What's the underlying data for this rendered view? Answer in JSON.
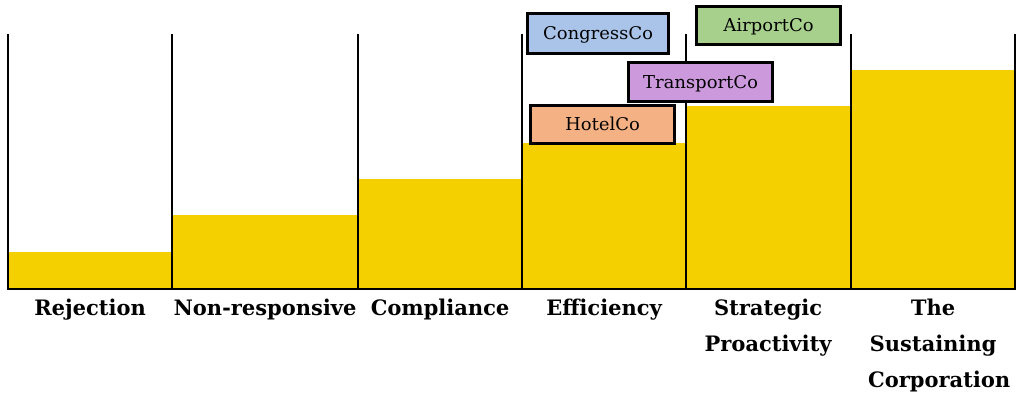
{
  "stages": [
    {
      "label": "Rejection",
      "level": 1
    },
    {
      "label": "Non-responsive",
      "level": 2
    },
    {
      "label": "Compliance",
      "level": 3
    },
    {
      "label": "Efficiency",
      "level": 4
    },
    {
      "label": "Strategic Proactivity",
      "level": 5
    },
    {
      "label": "The Sustaining Corporation",
      "level": 6
    }
  ],
  "companies": [
    {
      "name": "CongressCo",
      "color": "#a9c4e8",
      "stage": "Efficiency"
    },
    {
      "name": "AirportCo",
      "color": "#a8d08d",
      "stage": "Strategic Proactivity"
    },
    {
      "name": "TransportCo",
      "color": "#cc99dd",
      "stage": "Strategic Proactivity"
    },
    {
      "name": "HotelCo",
      "color": "#f4b183",
      "stage": "Efficiency"
    }
  ],
  "colors": {
    "step_fill": "#f4d000",
    "line": "#000000"
  }
}
